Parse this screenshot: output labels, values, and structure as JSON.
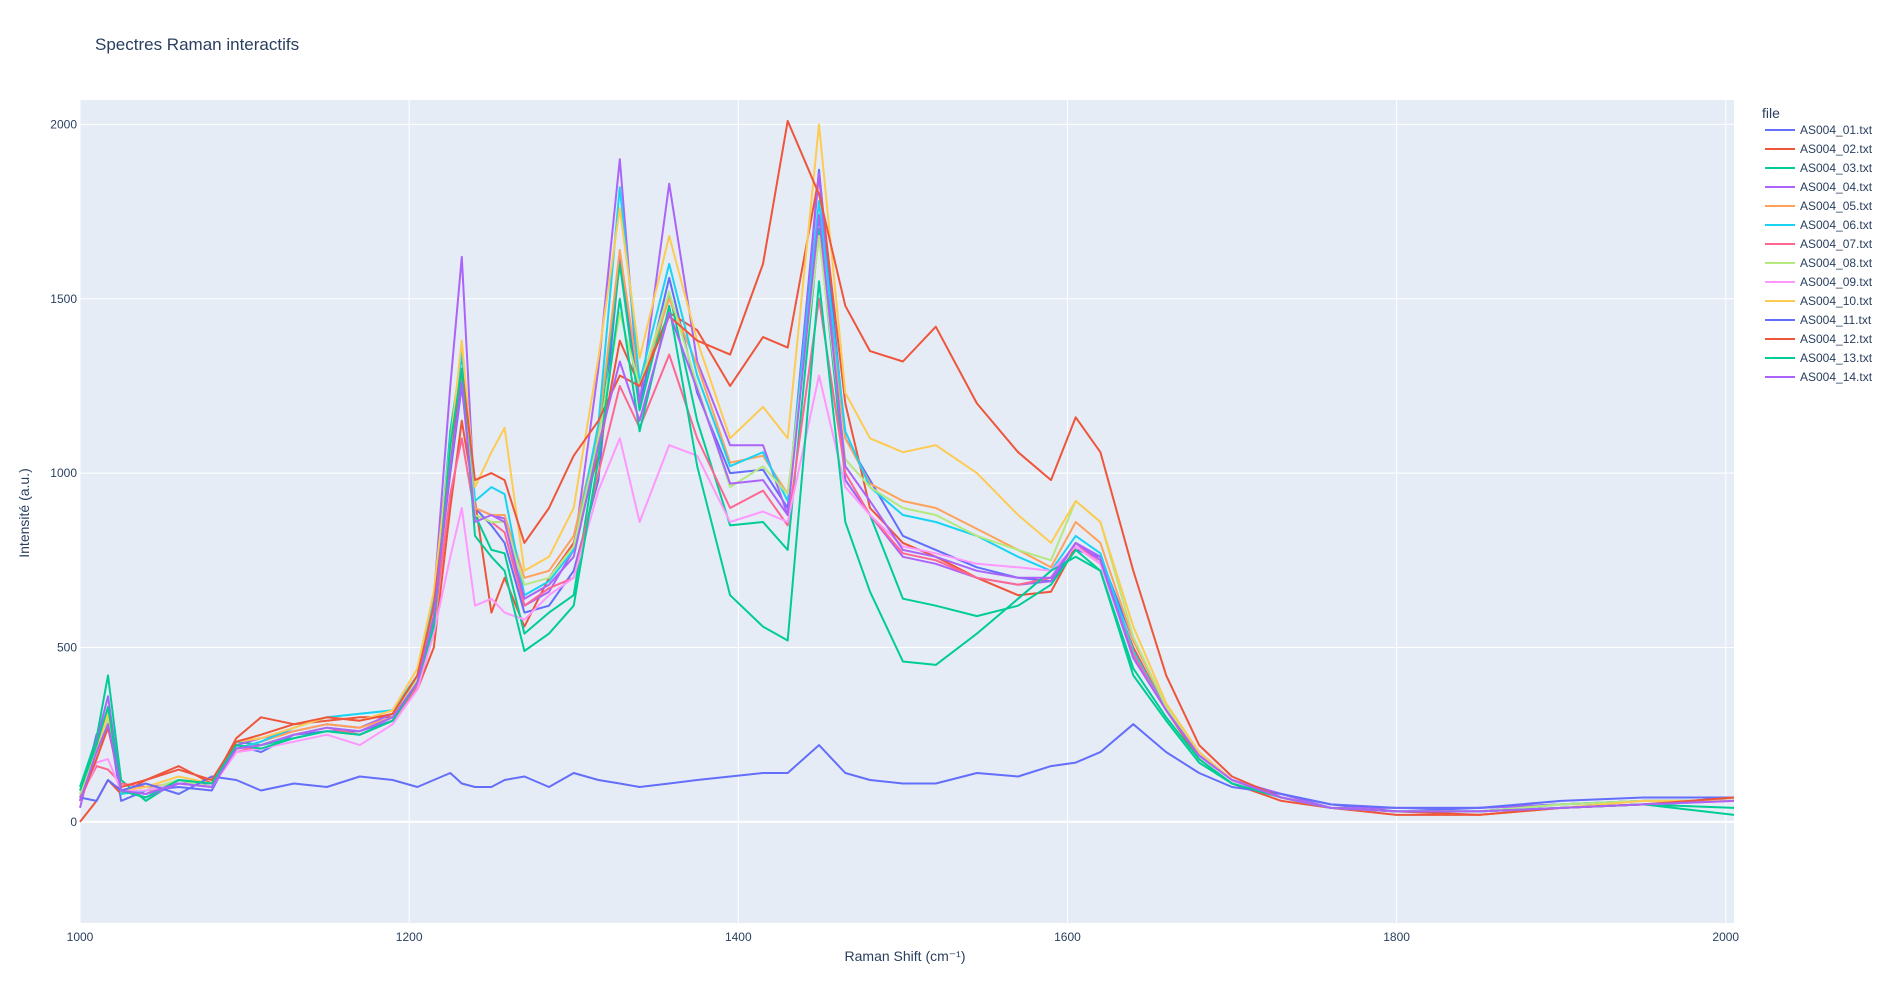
{
  "chart_data": {
    "type": "line",
    "title": "Spectres Raman interactifs",
    "xlabel": "Raman Shift (cm⁻¹)",
    "ylabel": "Intensité (a.u.)",
    "xlim": [
      1000,
      2005
    ],
    "ylim": [
      -290,
      2070
    ],
    "x_ticks": [
      1000,
      1200,
      1400,
      1600,
      1800,
      2000
    ],
    "y_ticks": [
      0,
      500,
      1000,
      1500,
      2000
    ],
    "grid": true,
    "legend_title": "file",
    "legend_position": "top-right outside",
    "background_color": "#e5ecf6",
    "sample_x": [
      1000,
      1010,
      1017,
      1025,
      1040,
      1060,
      1080,
      1095,
      1110,
      1130,
      1150,
      1170,
      1190,
      1205,
      1215,
      1225,
      1232,
      1240,
      1250,
      1258,
      1270,
      1285,
      1300,
      1315,
      1328,
      1340,
      1358,
      1375,
      1395,
      1415,
      1430,
      1449,
      1465,
      1480,
      1500,
      1520,
      1545,
      1570,
      1590,
      1605,
      1620,
      1640,
      1660,
      1680,
      1700,
      1730,
      1760,
      1800,
      1850,
      1900,
      1950,
      2005
    ],
    "series": [
      {
        "name": "AS004_01.txt",
        "color": "#636efa",
        "values": [
          60,
          250,
          300,
          60,
          90,
          100,
          90,
          220,
          200,
          250,
          260,
          260,
          290,
          400,
          600,
          1000,
          1250,
          900,
          850,
          800,
          600,
          620,
          720,
          980,
          1620,
          1200,
          1560,
          1230,
          1000,
          1010,
          900,
          1870,
          1100,
          980,
          820,
          780,
          730,
          700,
          690,
          780,
          760,
          520,
          330,
          200,
          120,
          80,
          50,
          30,
          40,
          50,
          60,
          60
        ]
      },
      {
        "name": "AS004_02.txt",
        "color": "#ef553b",
        "values": [
          0,
          60,
          120,
          80,
          120,
          160,
          110,
          240,
          300,
          280,
          290,
          300,
          300,
          380,
          500,
          900,
          1150,
          920,
          600,
          700,
          560,
          700,
          800,
          1050,
          1380,
          1250,
          1460,
          1410,
          1250,
          1390,
          1360,
          1850,
          1200,
          900,
          800,
          760,
          700,
          650,
          660,
          790,
          740,
          500,
          320,
          180,
          110,
          60,
          40,
          20,
          20,
          40,
          50,
          70
        ]
      },
      {
        "name": "AS004_03.txt",
        "color": "#00cc96",
        "values": [
          100,
          240,
          420,
          120,
          60,
          120,
          110,
          230,
          220,
          240,
          260,
          250,
          290,
          400,
          580,
          1120,
          1340,
          880,
          780,
          770,
          540,
          600,
          650,
          1100,
          1600,
          1180,
          1520,
          1150,
          850,
          860,
          780,
          1700,
          980,
          880,
          640,
          620,
          590,
          620,
          680,
          780,
          720,
          440,
          300,
          180,
          110,
          70,
          40,
          30,
          30,
          40,
          50,
          40
        ]
      },
      {
        "name": "AS004_04.txt",
        "color": "#ab63fa",
        "values": [
          40,
          230,
          360,
          90,
          70,
          110,
          110,
          220,
          240,
          260,
          280,
          270,
          310,
          420,
          640,
          1250,
          1620,
          900,
          880,
          870,
          620,
          660,
          780,
          1300,
          1900,
          1200,
          1830,
          1320,
          1080,
          1080,
          880,
          1860,
          980,
          880,
          760,
          740,
          700,
          680,
          690,
          800,
          760,
          480,
          330,
          200,
          120,
          80,
          40,
          40,
          40,
          50,
          60,
          60
        ]
      },
      {
        "name": "AS004_05.txt",
        "color": "#ffa15a",
        "values": [
          80,
          200,
          280,
          90,
          80,
          120,
          100,
          210,
          230,
          260,
          280,
          270,
          300,
          410,
          600,
          1020,
          1300,
          900,
          880,
          880,
          700,
          720,
          820,
          1120,
          1640,
          1250,
          1500,
          1310,
          1030,
          1050,
          940,
          1680,
          1100,
          970,
          920,
          900,
          840,
          780,
          730,
          860,
          800,
          520,
          330,
          190,
          120,
          70,
          40,
          30,
          30,
          50,
          60,
          60
        ]
      },
      {
        "name": "AS004_06.txt",
        "color": "#19d3f3",
        "values": [
          70,
          220,
          320,
          80,
          90,
          120,
          100,
          210,
          230,
          270,
          300,
          310,
          320,
          420,
          650,
          1100,
          1350,
          920,
          960,
          940,
          650,
          690,
          780,
          1140,
          1820,
          1260,
          1600,
          1280,
          1020,
          1060,
          920,
          1780,
          1120,
          960,
          880,
          860,
          820,
          760,
          720,
          820,
          770,
          490,
          320,
          190,
          120,
          70,
          40,
          30,
          30,
          50,
          60,
          60
        ]
      },
      {
        "name": "AS004_07.txt",
        "color": "#ff6692",
        "values": [
          70,
          160,
          150,
          110,
          100,
          110,
          100,
          200,
          220,
          250,
          270,
          250,
          290,
          390,
          560,
          940,
          1100,
          880,
          860,
          830,
          620,
          670,
          700,
          1000,
          1250,
          1130,
          1340,
          1100,
          900,
          950,
          850,
          1500,
          1000,
          880,
          770,
          750,
          700,
          680,
          700,
          800,
          740,
          480,
          320,
          190,
          120,
          70,
          40,
          30,
          30,
          40,
          50,
          60
        ]
      },
      {
        "name": "AS004_08.txt",
        "color": "#b6e880",
        "values": [
          80,
          200,
          300,
          90,
          90,
          120,
          100,
          210,
          220,
          250,
          270,
          260,
          300,
          410,
          610,
          1040,
          1280,
          880,
          860,
          860,
          680,
          700,
          790,
          1100,
          1460,
          1250,
          1520,
          1250,
          960,
          1020,
          940,
          1680,
          1040,
          960,
          900,
          880,
          820,
          780,
          750,
          920,
          860,
          530,
          330,
          200,
          120,
          70,
          40,
          30,
          30,
          50,
          60,
          60
        ]
      },
      {
        "name": "AS004_09.txt",
        "color": "#ff97ff",
        "values": [
          60,
          170,
          180,
          90,
          90,
          110,
          100,
          200,
          210,
          230,
          250,
          220,
          280,
          380,
          540,
          760,
          900,
          620,
          640,
          600,
          580,
          650,
          700,
          950,
          1100,
          860,
          1080,
          1050,
          860,
          890,
          860,
          1280,
          960,
          880,
          790,
          770,
          740,
          730,
          720,
          790,
          740,
          470,
          320,
          190,
          120,
          70,
          40,
          30,
          30,
          40,
          50,
          60
        ]
      },
      {
        "name": "AS004_10.txt",
        "color": "#fecb52",
        "values": [
          90,
          210,
          310,
          90,
          100,
          130,
          110,
          230,
          240,
          270,
          300,
          290,
          320,
          440,
          660,
          1080,
          1380,
          960,
          1060,
          1130,
          720,
          760,
          900,
          1330,
          1760,
          1330,
          1680,
          1380,
          1100,
          1190,
          1100,
          2000,
          1230,
          1100,
          1060,
          1080,
          1000,
          880,
          800,
          920,
          860,
          560,
          340,
          200,
          120,
          70,
          40,
          30,
          20,
          40,
          60,
          60
        ]
      },
      {
        "name": "AS004_11.txt",
        "color": "#636efa",
        "values": [
          70,
          60,
          120,
          90,
          110,
          80,
          130,
          120,
          90,
          110,
          100,
          130,
          120,
          100,
          120,
          140,
          110,
          100,
          100,
          120,
          130,
          100,
          140,
          120,
          110,
          100,
          110,
          120,
          130,
          140,
          140,
          220,
          140,
          120,
          110,
          110,
          140,
          130,
          160,
          170,
          200,
          280,
          200,
          140,
          100,
          80,
          50,
          40,
          40,
          60,
          70,
          70
        ]
      },
      {
        "name": "AS004_12.txt",
        "color": "#ef553b",
        "values": [
          60,
          180,
          270,
          100,
          120,
          150,
          120,
          230,
          250,
          280,
          300,
          290,
          310,
          420,
          620,
          1020,
          1300,
          980,
          1000,
          980,
          800,
          900,
          1050,
          1150,
          1280,
          1250,
          1450,
          1380,
          1340,
          1600,
          2010,
          1800,
          1480,
          1350,
          1320,
          1420,
          1200,
          1060,
          980,
          1160,
          1060,
          720,
          420,
          220,
          130,
          70,
          40,
          30,
          20,
          40,
          50,
          70
        ]
      },
      {
        "name": "AS004_13.txt",
        "color": "#00cc96",
        "values": [
          90,
          220,
          330,
          90,
          70,
          120,
          110,
          220,
          210,
          240,
          260,
          250,
          290,
          400,
          560,
          1080,
          1300,
          820,
          760,
          720,
          490,
          540,
          620,
          1040,
          1500,
          1120,
          1480,
          1020,
          650,
          560,
          520,
          1550,
          860,
          660,
          460,
          450,
          540,
          640,
          720,
          760,
          720,
          420,
          290,
          170,
          110,
          70,
          40,
          30,
          30,
          40,
          50,
          20
        ]
      },
      {
        "name": "AS004_14.txt",
        "color": "#ab63fa",
        "values": [
          60,
          200,
          280,
          90,
          80,
          110,
          100,
          210,
          220,
          250,
          270,
          260,
          300,
          400,
          590,
          1020,
          1260,
          860,
          880,
          860,
          640,
          680,
          760,
          1080,
          1320,
          1150,
          1460,
          1240,
          970,
          980,
          880,
          1740,
          1020,
          920,
          780,
          760,
          720,
          700,
          700,
          800,
          750,
          470,
          320,
          190,
          120,
          70,
          40,
          30,
          30,
          40,
          50,
          60
        ]
      }
    ]
  }
}
